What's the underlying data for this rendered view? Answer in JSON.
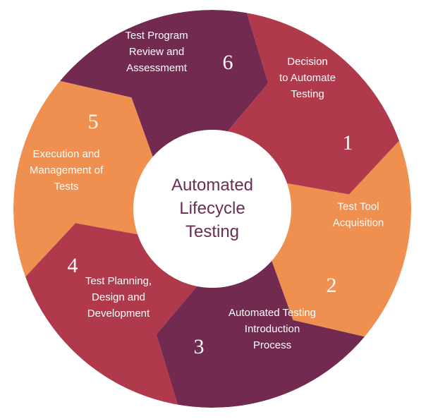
{
  "diagram": {
    "center_title": [
      "Automated",
      "Lifecycle",
      "Testing"
    ],
    "steps": [
      {
        "number": "1",
        "label": [
          "Decision",
          "to Automate",
          "Testing"
        ],
        "color": "#b03a4c"
      },
      {
        "number": "2",
        "label": [
          "Test Tool",
          "Acquisition"
        ],
        "color": "#ef8f50"
      },
      {
        "number": "3",
        "label": [
          "Automated Testing",
          "Introduction",
          "Process"
        ],
        "color": "#722a50"
      },
      {
        "number": "4",
        "label": [
          "Test Planning,",
          "Design and",
          "Development"
        ],
        "color": "#b03a4c"
      },
      {
        "number": "5",
        "label": [
          "Execution and",
          "Management of",
          "Tests"
        ],
        "color": "#ef8f50"
      },
      {
        "number": "6",
        "label": [
          "Test Program",
          "Review and",
          "Assessmemt"
        ],
        "color": "#722a50"
      }
    ],
    "colors": {
      "center_fill": "#ffffff",
      "center_text": "#6b2d55",
      "step_text": "#ffffff"
    }
  }
}
